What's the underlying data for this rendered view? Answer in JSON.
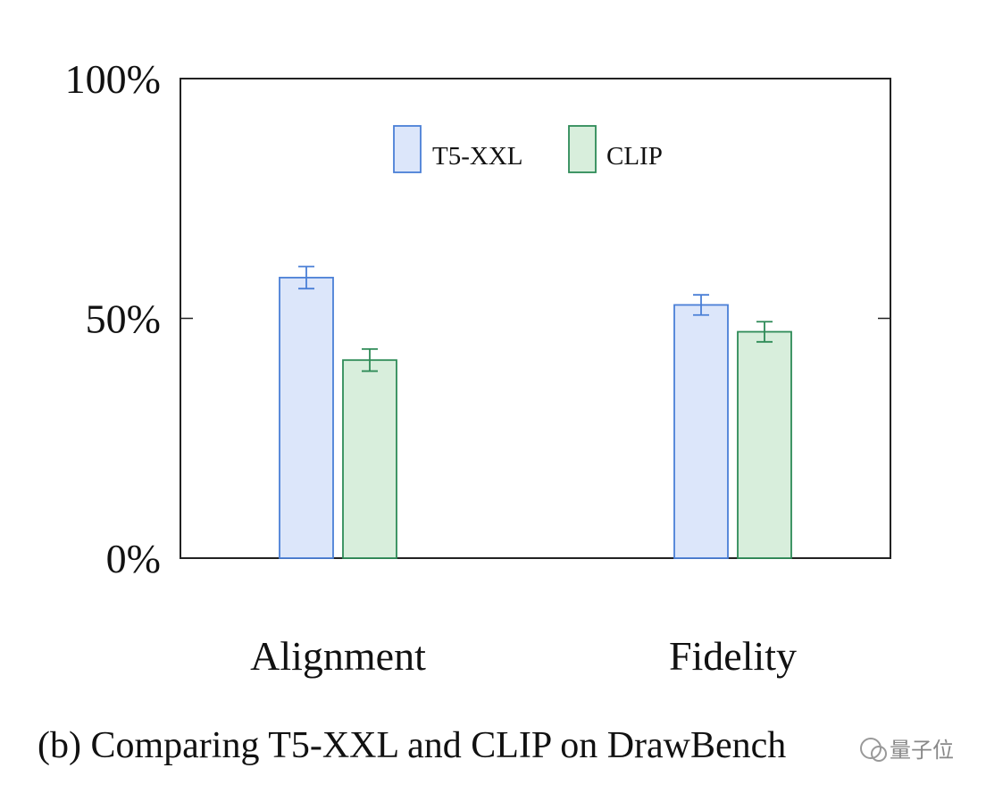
{
  "chart_data": {
    "type": "bar",
    "categories": [
      "Alignment",
      "Fidelity"
    ],
    "series": [
      {
        "name": "T5-XXL",
        "values": [
          58.5,
          52.8
        ],
        "errors": [
          2.3,
          2.1
        ],
        "fill": "#dce6fa",
        "stroke": "#4a7fd6"
      },
      {
        "name": "CLIP",
        "values": [
          41.3,
          47.2
        ],
        "errors": [
          2.3,
          2.1
        ],
        "fill": "#d8eedc",
        "stroke": "#2e8b57"
      }
    ],
    "ylim": [
      0,
      100
    ],
    "yticks": [
      {
        "value": 0,
        "label": "0%"
      },
      {
        "value": 50,
        "label": "50%"
      },
      {
        "value": 100,
        "label": "100%"
      }
    ],
    "legend_placement": "top-center",
    "grid": false
  },
  "caption": "(b) Comparing T5-XXL and CLIP on DrawBench",
  "watermark": "量子位"
}
